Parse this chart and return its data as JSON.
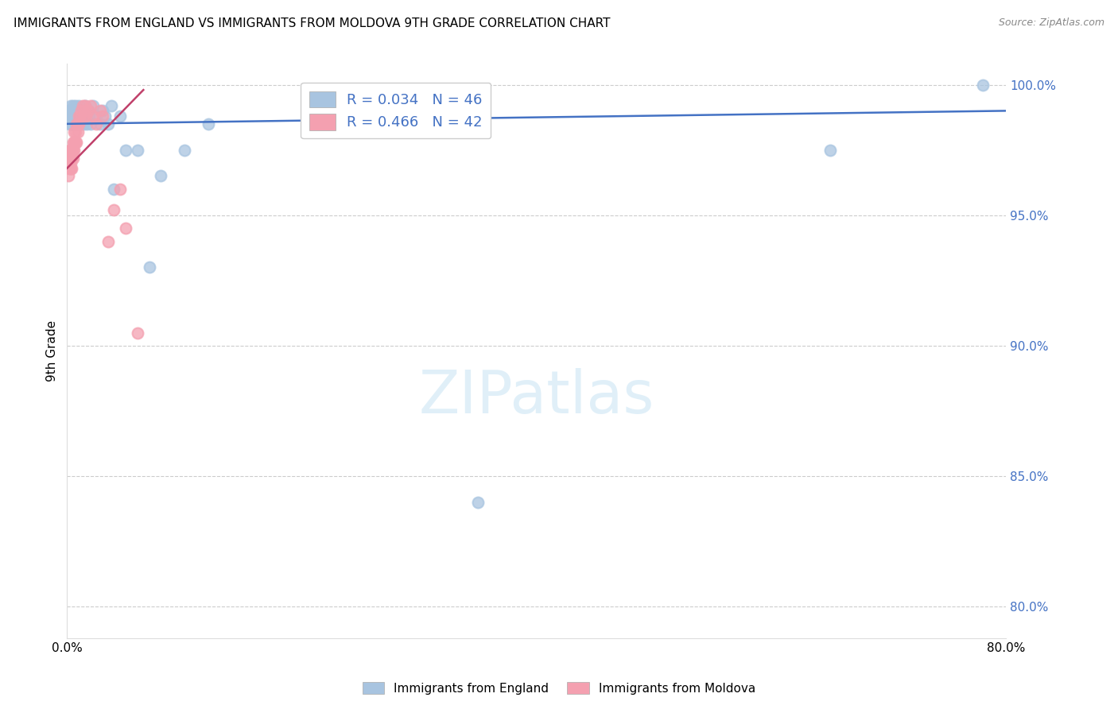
{
  "title": "IMMIGRANTS FROM ENGLAND VS IMMIGRANTS FROM MOLDOVA 9TH GRADE CORRELATION CHART",
  "source": "Source: ZipAtlas.com",
  "ylabel": "9th Grade",
  "xlim": [
    0.0,
    0.8
  ],
  "ylim": [
    0.788,
    1.008
  ],
  "xticks": [
    0.0,
    0.1,
    0.2,
    0.3,
    0.4,
    0.5,
    0.6,
    0.7,
    0.8
  ],
  "xticklabels": [
    "0.0%",
    "",
    "",
    "",
    "",
    "",
    "",
    "",
    "80.0%"
  ],
  "ytick_positions": [
    0.8,
    0.85,
    0.9,
    0.95,
    1.0
  ],
  "ytick_labels": [
    "80.0%",
    "85.0%",
    "90.0%",
    "95.0%",
    "100.0%"
  ],
  "england_color": "#a8c4e0",
  "moldova_color": "#f4a0b0",
  "england_line_color": "#4472c4",
  "moldova_line_color": "#c0406a",
  "legend_england_label": "R = 0.034   N = 46",
  "legend_moldova_label": "R = 0.466   N = 42",
  "watermark": "ZIPatlas",
  "england_x": [
    0.001,
    0.002,
    0.002,
    0.003,
    0.003,
    0.004,
    0.004,
    0.005,
    0.005,
    0.006,
    0.007,
    0.007,
    0.008,
    0.008,
    0.009,
    0.01,
    0.01,
    0.011,
    0.012,
    0.013,
    0.014,
    0.015,
    0.016,
    0.017,
    0.018,
    0.019,
    0.02,
    0.022,
    0.025,
    0.028,
    0.03,
    0.032,
    0.035,
    0.038,
    0.04,
    0.045,
    0.05,
    0.06,
    0.07,
    0.08,
    0.1,
    0.12,
    0.35,
    0.65,
    0.78,
    0.001
  ],
  "england_y": [
    0.99,
    0.988,
    0.985,
    0.992,
    0.988,
    0.985,
    0.99,
    0.992,
    0.988,
    0.99,
    0.985,
    0.992,
    0.988,
    0.985,
    0.99,
    0.988,
    0.992,
    0.985,
    0.988,
    0.99,
    0.985,
    0.992,
    0.988,
    0.985,
    0.99,
    0.988,
    0.985,
    0.992,
    0.988,
    0.985,
    0.99,
    0.988,
    0.985,
    0.992,
    0.96,
    0.988,
    0.975,
    0.975,
    0.93,
    0.965,
    0.975,
    0.985,
    0.84,
    0.975,
    1.0,
    0.988
  ],
  "moldova_x": [
    0.001,
    0.001,
    0.002,
    0.002,
    0.002,
    0.003,
    0.003,
    0.003,
    0.004,
    0.004,
    0.004,
    0.005,
    0.005,
    0.005,
    0.006,
    0.006,
    0.006,
    0.007,
    0.007,
    0.008,
    0.008,
    0.009,
    0.009,
    0.01,
    0.01,
    0.011,
    0.012,
    0.013,
    0.014,
    0.015,
    0.016,
    0.018,
    0.02,
    0.022,
    0.025,
    0.028,
    0.03,
    0.035,
    0.04,
    0.045,
    0.05,
    0.06
  ],
  "moldova_y": [
    0.97,
    0.965,
    0.972,
    0.968,
    0.975,
    0.97,
    0.975,
    0.968,
    0.972,
    0.968,
    0.975,
    0.972,
    0.978,
    0.975,
    0.978,
    0.982,
    0.975,
    0.982,
    0.978,
    0.985,
    0.978,
    0.985,
    0.982,
    0.988,
    0.985,
    0.988,
    0.99,
    0.992,
    0.988,
    0.992,
    0.988,
    0.99,
    0.992,
    0.988,
    0.985,
    0.99,
    0.988,
    0.94,
    0.952,
    0.96,
    0.945,
    0.905
  ],
  "england_line_x": [
    0.0,
    0.8
  ],
  "england_line_y": [
    0.985,
    0.99
  ],
  "moldova_line_x": [
    0.0,
    0.065
  ],
  "moldova_line_y": [
    0.968,
    0.998
  ]
}
